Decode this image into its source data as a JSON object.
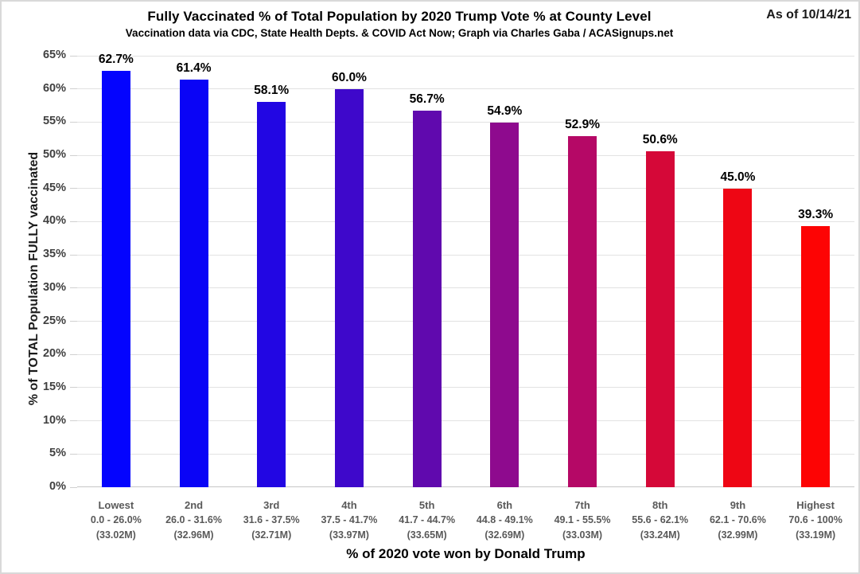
{
  "chart_data": {
    "type": "bar",
    "title": "Fully Vaccinated % of Total Population by 2020 Trump Vote % at County Level",
    "subtitle": "Vaccination data via CDC, State Health Depts. & COVID Act Now; Graph via Charles Gaba / ACASignups.net",
    "as_of": "As of 10/14/21",
    "xlabel": "% of 2020 vote won by Donald Trump",
    "ylabel": "% of TOTAL Population FULLY vaccinated",
    "ylim": [
      0,
      65
    ],
    "ytick_step": 5,
    "ytick_labels": [
      "0%",
      "5%",
      "10%",
      "15%",
      "20%",
      "25%",
      "30%",
      "35%",
      "40%",
      "45%",
      "50%",
      "55%",
      "60%",
      "65%"
    ],
    "grid": true,
    "legend": "none",
    "categories": [
      {
        "name": "Lowest",
        "range": "0.0 - 26.0%",
        "population": "(33.02M)"
      },
      {
        "name": "2nd",
        "range": "26.0 - 31.6%",
        "population": "(32.96M)"
      },
      {
        "name": "3rd",
        "range": "31.6 - 37.5%",
        "population": "(32.71M)"
      },
      {
        "name": "4th",
        "range": "37.5 - 41.7%",
        "population": "(33.97M)"
      },
      {
        "name": "5th",
        "range": "41.7 - 44.7%",
        "population": "(33.65M)"
      },
      {
        "name": "6th",
        "range": "44.8 - 49.1%",
        "population": "(32.69M)"
      },
      {
        "name": "7th",
        "range": "49.1 - 55.5%",
        "population": "(33.03M)"
      },
      {
        "name": "8th",
        "range": "55.6 - 62.1%",
        "population": "(33.24M)"
      },
      {
        "name": "9th",
        "range": "62.1 - 70.6%",
        "population": "(32.99M)"
      },
      {
        "name": "Highest",
        "range": "70.6 - 100%",
        "population": "(33.19M)"
      }
    ],
    "values": [
      62.7,
      61.4,
      58.1,
      60.0,
      56.7,
      54.9,
      52.9,
      50.6,
      45.0,
      39.3
    ],
    "value_labels": [
      "62.7%",
      "61.4%",
      "58.1%",
      "60.0%",
      "56.7%",
      "54.9%",
      "52.9%",
      "50.6%",
      "45.0%",
      "39.3%"
    ],
    "bar_colors": [
      "#0404fe",
      "#0a04f6",
      "#2206e3",
      "#3e08cb",
      "#6009ae",
      "#8e0a8e",
      "#b50866",
      "#d50838",
      "#ee0614",
      "#fd0404"
    ],
    "colors": {
      "grid": "#e2e2e2",
      "axis": "#c6c6c6",
      "tick_label": "#404040",
      "category_label": "#595959",
      "title": "#000000"
    }
  }
}
